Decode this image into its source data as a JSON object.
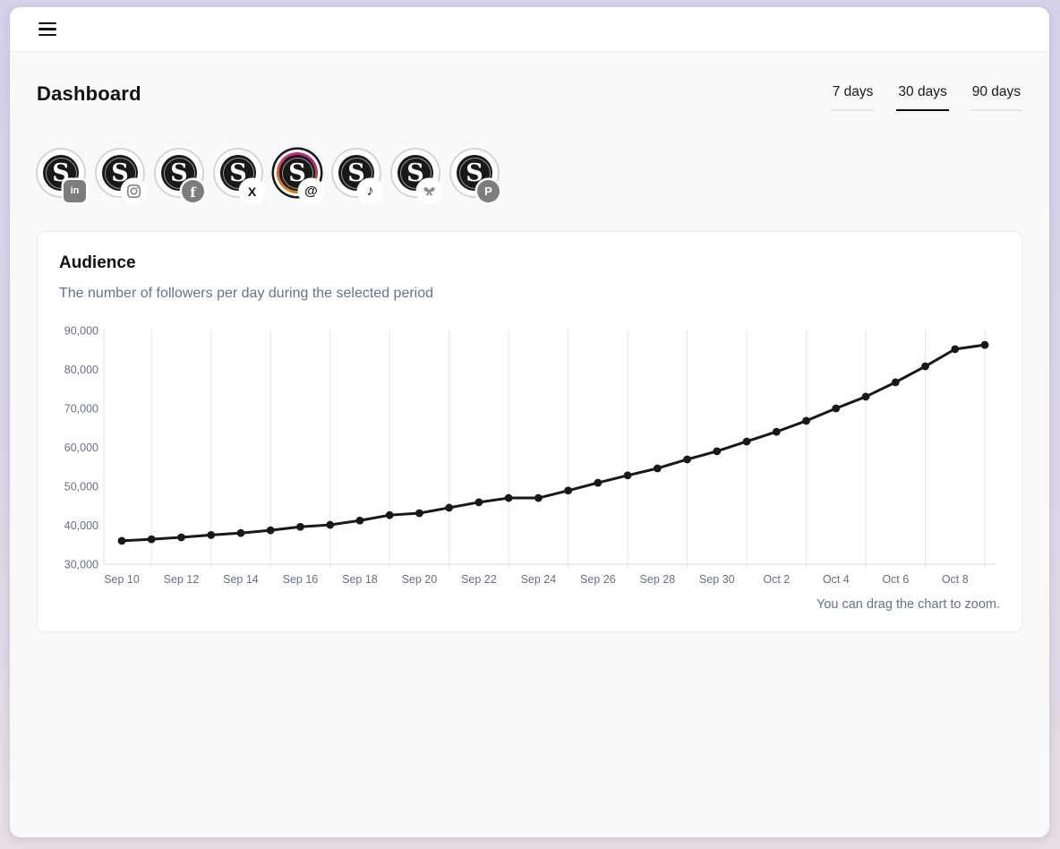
{
  "topbar": {
    "menu_label": "menu"
  },
  "header": {
    "title": "Dashboard"
  },
  "period_tabs": [
    {
      "label": "7 days",
      "active": false
    },
    {
      "label": "30 days",
      "active": true
    },
    {
      "label": "90 days",
      "active": false
    }
  ],
  "accounts": [
    {
      "platform": "linkedin",
      "selected": false
    },
    {
      "platform": "instagram",
      "selected": false
    },
    {
      "platform": "facebook",
      "selected": false
    },
    {
      "platform": "x",
      "selected": false
    },
    {
      "platform": "threads",
      "selected": true
    },
    {
      "platform": "tiktok",
      "selected": false
    },
    {
      "platform": "bluesky",
      "selected": false
    },
    {
      "platform": "pinterest",
      "selected": false
    }
  ],
  "logo_letter": "S",
  "card": {
    "title": "Audience",
    "subtitle": "The number of followers per day during the selected period",
    "footer_hint": "You can drag the chart to zoom."
  },
  "chart_data": {
    "type": "line",
    "title": "Audience",
    "x": [
      "Sep 10",
      "Sep 11",
      "Sep 12",
      "Sep 13",
      "Sep 14",
      "Sep 15",
      "Sep 16",
      "Sep 17",
      "Sep 18",
      "Sep 19",
      "Sep 20",
      "Sep 21",
      "Sep 22",
      "Sep 23",
      "Sep 24",
      "Sep 25",
      "Sep 26",
      "Sep 27",
      "Sep 28",
      "Sep 29",
      "Sep 30",
      "Oct 1",
      "Oct 2",
      "Oct 3",
      "Oct 4",
      "Oct 5",
      "Oct 6",
      "Oct 7",
      "Oct 8",
      "Oct 9"
    ],
    "series": [
      {
        "name": "Followers per day",
        "values": [
          36000,
          36400,
          36900,
          37500,
          38000,
          38700,
          39600,
          40100,
          41200,
          42600,
          43100,
          44500,
          45900,
          47000,
          47000,
          48900,
          50900,
          52800,
          54600,
          56900,
          59000,
          61500,
          64000,
          66800,
          70000,
          73000,
          76700,
          80800,
          85200,
          86300
        ]
      }
    ],
    "xlabel": "",
    "ylabel": "",
    "ylim": [
      30000,
      90000
    ],
    "y_ticks": [
      30000,
      40000,
      50000,
      60000,
      70000,
      80000,
      90000
    ],
    "y_tick_labels": [
      "30,000",
      "40,000",
      "50,000",
      "60,000",
      "70,000",
      "80,000",
      "90,000"
    ],
    "x_tick_every": 2,
    "grid": "vertical-only",
    "legend": "none",
    "line_color": "#17181c",
    "grid_color": "#e7e7e9",
    "axis_color": "#dcdcdf",
    "tick_label_color": "#667085"
  }
}
